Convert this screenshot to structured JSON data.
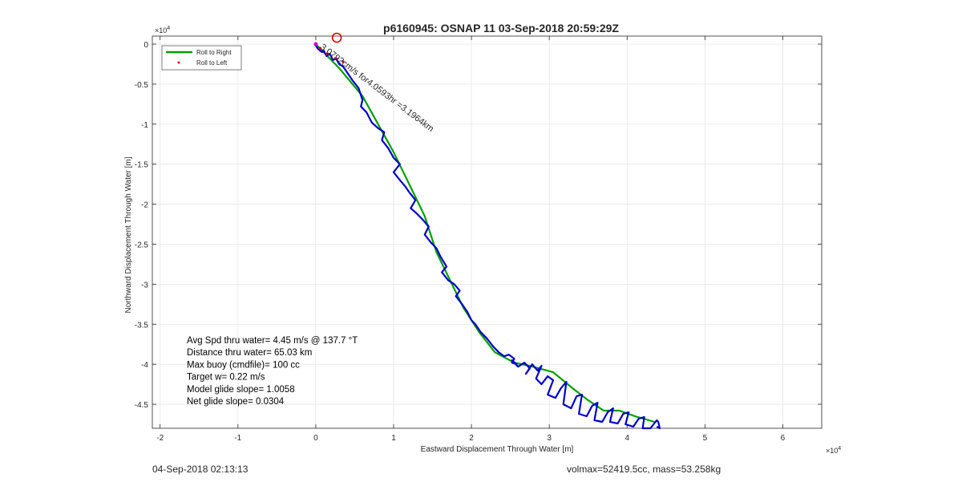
{
  "chart_data": {
    "type": "line",
    "title": "p6160945: OSNAP 11 03-Sep-2018 20:59:29Z",
    "xlabel": "Eastward Displacement Through Water [m]",
    "ylabel": "Northward Displacement Through Water [m]",
    "x_exponent_label": "×10",
    "x_exponent": "4",
    "y_exponent_label": "×10",
    "y_exponent": "4",
    "xlim": [
      -2.1,
      6.5
    ],
    "ylim": [
      -4.8,
      0.1
    ],
    "xticks": [
      -2,
      -1,
      0,
      1,
      2,
      3,
      4,
      5,
      6
    ],
    "xtick_labels": [
      "-2",
      "-1",
      "0",
      "1",
      "2",
      "3",
      "4",
      "5",
      "6"
    ],
    "yticks": [
      0,
      -0.5,
      -1,
      -1.5,
      -2,
      -2.5,
      -3,
      -3.5,
      -4,
      -4.5
    ],
    "ytick_labels": [
      "0",
      "-0.5",
      "-1",
      "-1.5",
      "-2",
      "-2.5",
      "-3",
      "-3.5",
      "-4",
      "-4.5"
    ],
    "grid": true,
    "legend_position": "top-left",
    "legend": [
      {
        "label": "Roll to Right",
        "color": "#00a000",
        "style": "line"
      },
      {
        "label": "Roll to Left",
        "color": "#e00000",
        "style": "dot"
      }
    ],
    "series": [
      {
        "name": "Roll to Right",
        "color": "#00a000",
        "x": [
          0.0,
          0.1,
          0.3,
          0.6,
          0.8,
          1.0,
          1.2,
          1.4,
          1.55,
          1.75,
          1.9,
          2.1,
          2.3,
          2.55,
          2.75,
          2.9,
          3.05,
          3.3,
          3.5,
          3.7,
          3.9,
          4.1,
          4.35
        ],
        "y": [
          0.0,
          -0.1,
          -0.3,
          -0.65,
          -1.0,
          -1.35,
          -1.75,
          -2.15,
          -2.6,
          -3.0,
          -3.3,
          -3.6,
          -3.85,
          -3.98,
          -4.02,
          -4.06,
          -4.1,
          -4.3,
          -4.45,
          -4.58,
          -4.58,
          -4.65,
          -4.72
        ]
      },
      {
        "name": "Roll to Left",
        "color": "#e00000",
        "x": [
          0.05,
          0.15,
          0.25,
          0.35
        ],
        "y": [
          -0.05,
          -0.12,
          -0.18,
          -0.22
        ]
      },
      {
        "name": "track",
        "color": "#0000c8",
        "x": [
          0.0,
          0.03,
          0.08,
          0.1,
          0.14,
          0.18,
          0.22,
          0.26,
          0.3,
          0.35,
          0.4,
          0.47,
          0.55,
          0.6,
          0.58,
          0.65,
          0.72,
          0.8,
          0.88,
          0.85,
          0.93,
          1.0,
          1.08,
          1.0,
          1.08,
          1.15,
          1.2,
          1.28,
          1.22,
          1.3,
          1.38,
          1.45,
          1.4,
          1.48,
          1.55,
          1.6,
          1.68,
          1.62,
          1.7,
          1.78,
          1.85,
          1.8,
          1.88,
          1.95,
          2.0,
          2.05,
          2.12,
          2.2,
          2.28,
          2.35,
          2.42,
          2.48,
          2.55,
          2.52,
          2.58,
          2.52,
          2.6,
          2.68,
          2.75,
          2.7,
          2.78,
          2.85,
          2.9,
          2.83,
          2.9,
          2.98,
          3.05,
          2.98,
          3.08,
          3.15,
          3.22,
          3.18,
          3.28,
          3.35,
          3.42,
          3.38,
          3.48,
          3.55,
          3.62,
          3.58,
          3.68,
          3.75,
          3.82,
          3.78,
          3.88,
          3.95,
          4.02,
          3.98,
          4.08,
          4.15,
          4.22,
          4.2,
          4.3,
          4.38,
          4.4,
          4.42,
          4.38
        ],
        "y": [
          -0.02,
          -0.06,
          -0.1,
          -0.08,
          -0.15,
          -0.12,
          -0.2,
          -0.18,
          -0.25,
          -0.28,
          -0.35,
          -0.45,
          -0.55,
          -0.7,
          -0.78,
          -0.85,
          -0.98,
          -1.05,
          -1.1,
          -1.2,
          -1.3,
          -1.42,
          -1.5,
          -1.6,
          -1.7,
          -1.78,
          -1.85,
          -1.95,
          -2.05,
          -2.12,
          -2.2,
          -2.28,
          -2.38,
          -2.48,
          -2.55,
          -2.65,
          -2.78,
          -2.85,
          -2.95,
          -3.0,
          -3.08,
          -3.15,
          -3.25,
          -3.35,
          -3.45,
          -3.5,
          -3.6,
          -3.68,
          -3.78,
          -3.85,
          -3.9,
          -3.88,
          -3.93,
          -3.98,
          -4.0,
          -3.95,
          -4.03,
          -3.98,
          -4.05,
          -4.12,
          -4.0,
          -4.08,
          -4.02,
          -4.18,
          -4.25,
          -4.15,
          -4.2,
          -4.38,
          -4.42,
          -4.3,
          -4.22,
          -4.5,
          -4.55,
          -4.4,
          -4.38,
          -4.62,
          -4.65,
          -4.52,
          -4.48,
          -4.7,
          -4.72,
          -4.6,
          -4.55,
          -4.72,
          -4.74,
          -4.62,
          -4.6,
          -4.75,
          -4.78,
          -4.68,
          -4.66,
          -4.8,
          -4.8,
          -4.7,
          -4.72,
          -4.8,
          -4.78
        ]
      }
    ],
    "annotations": {
      "current_marker": {
        "x": 0.27,
        "y": 0.08,
        "color": "#e00000"
      },
      "start_marker": {
        "x": 0.0,
        "y": 0.0,
        "color": "#d000d0"
      },
      "rotated_text": "3.0792cm/s for4.0593hr =3.1964km",
      "rotated_text_anchor": {
        "x": 0.05,
        "y": -0.05
      },
      "stats": [
        "Avg Spd thru water=  4.45 m/s @ 137.7 °T",
        "Distance thru water= 65.03 km",
        "Max buoy (cmdfile)= 100 cc",
        "Target w= 0.22 m/s",
        "Model glide slope= 1.0058",
        "Net glide slope= 0.0304"
      ]
    }
  },
  "footer": {
    "left": "04-Sep-2018 02:13:13",
    "right": "volmax=52419.5cc, mass=53.258kg"
  }
}
